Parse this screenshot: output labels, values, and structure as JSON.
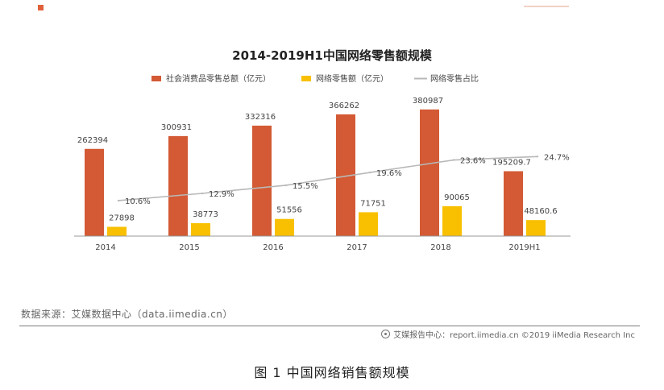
{
  "chart_data": {
    "type": "bar",
    "title": "2014-2019H1中国网络零售额规模",
    "categories": [
      "2014",
      "2015",
      "2016",
      "2017",
      "2018",
      "2019H1"
    ],
    "ylim": [
      0,
      400000
    ],
    "y2lim": [
      0,
      40
    ],
    "grid": false,
    "legend_position": "top-center",
    "series": [
      {
        "name": "社会消费品零售总额（亿元）",
        "kind": "bar",
        "color": "#d35a34",
        "values": [
          262394,
          300931,
          332316,
          366262,
          380987,
          195209.7
        ],
        "labels": [
          "262394",
          "300931",
          "332316",
          "366262",
          "380987",
          "195209.7"
        ]
      },
      {
        "name": "网络零售额（亿元）",
        "kind": "bar",
        "color": "#f8c000",
        "values": [
          27898,
          38773,
          51556,
          71751,
          90065,
          48160.6
        ],
        "labels": [
          "27898",
          "38773",
          "51556",
          "71751",
          "90065",
          "48160.6"
        ]
      },
      {
        "name": "网络零售占比",
        "kind": "line",
        "color": "#b8b8b8",
        "values": [
          10.6,
          12.9,
          15.5,
          19.6,
          23.6,
          24.7
        ],
        "labels": [
          "10.6%",
          "12.9%",
          "15.5%",
          "19.6%",
          "23.6%",
          "24.7%"
        ]
      }
    ]
  },
  "source_text": "数据来源：艾媒数据中心（data.iimedia.cn）",
  "footer_text": "艾媒报告中心：report.iimedia.cn  ©2019  iiMedia Research Inc",
  "caption": "图 1 中国网络销售额规模",
  "colors": {
    "accent_mark": "#e0603a",
    "axis": "#9a9a9a"
  }
}
